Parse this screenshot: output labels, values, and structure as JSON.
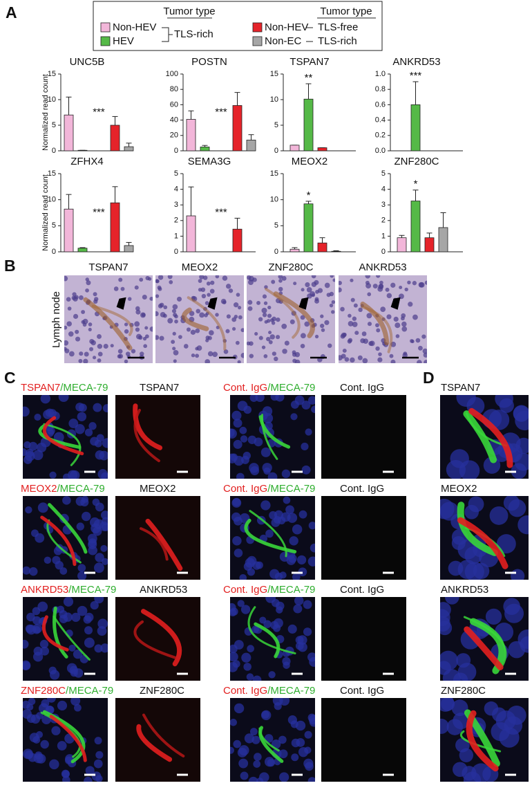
{
  "panel_labels": [
    "A",
    "B",
    "C",
    "D"
  ],
  "legend": {
    "left": {
      "header": "Tumor type",
      "group": "TLS-rich",
      "entries": [
        {
          "name": "Non-HEV",
          "color": "#f2b6d9"
        },
        {
          "name": "HEV",
          "color": "#55b947"
        }
      ]
    },
    "right": {
      "header": "Tumor type",
      "entries": [
        {
          "name": "Non-HEV",
          "color": "#e5232a",
          "group": "TLS-free"
        },
        {
          "name": "Non-EC",
          "color": "#a6a6a6",
          "group": "TLS-rich"
        }
      ]
    }
  },
  "chart_data": [
    {
      "type": "bar",
      "title": "UNC5B",
      "ylabel": "Normalized read count",
      "values": [
        7,
        0.1,
        5,
        0.8
      ],
      "errors": [
        3.5,
        0,
        1.7,
        0.7
      ],
      "annotation": "***",
      "ylim": [
        0,
        15
      ],
      "yticks": [
        0,
        5,
        10,
        15
      ]
    },
    {
      "type": "bar",
      "title": "POSTN",
      "values": [
        41,
        5,
        59,
        14
      ],
      "errors": [
        11,
        2,
        17,
        7
      ],
      "annotation": "***",
      "ylim": [
        0,
        100
      ],
      "yticks": [
        0,
        20,
        40,
        60,
        80,
        100
      ]
    },
    {
      "type": "bar",
      "title": "TSPAN7",
      "values": [
        1.1,
        10.1,
        0.6,
        0
      ],
      "errors": [
        0,
        3,
        0,
        0
      ],
      "annotation": "**",
      "ylim": [
        0,
        15
      ],
      "yticks": [
        0,
        5,
        10,
        15
      ]
    },
    {
      "type": "bar",
      "title": "ANKRD53",
      "values": [
        0,
        0.6,
        0,
        0
      ],
      "errors": [
        0,
        0.3,
        0,
        0
      ],
      "annotation": "***",
      "ylim": [
        0,
        1
      ],
      "yticks": [
        {
          "value": 0,
          "label": "0.0"
        },
        0.2,
        0.4,
        0.6,
        0.8,
        {
          "value": 1,
          "label": "1.0"
        }
      ]
    },
    {
      "type": "bar",
      "title": "ZFHX4",
      "ylabel": "Normalized read count",
      "values": [
        8.2,
        0.7,
        9.4,
        1.2
      ],
      "errors": [
        2.8,
        0.1,
        3.1,
        0.6
      ],
      "annotation": "***",
      "ylim": [
        0,
        15
      ],
      "yticks": [
        0,
        5,
        10,
        15
      ]
    },
    {
      "type": "bar",
      "title": "SEMA3G",
      "values": [
        2.3,
        0,
        1.45,
        0
      ],
      "errors": [
        1.85,
        0,
        0.7,
        0
      ],
      "annotation": "***",
      "ylim": [
        0,
        5
      ],
      "yticks": [
        0,
        1,
        2,
        3,
        4,
        5
      ]
    },
    {
      "type": "bar",
      "title": "MEOX2",
      "values": [
        0.5,
        9.2,
        1.7,
        0.1
      ],
      "errors": [
        0.3,
        0.5,
        1,
        0.1
      ],
      "annotation": "*",
      "ylim": [
        0,
        15
      ],
      "yticks": [
        0,
        5,
        10,
        15
      ]
    },
    {
      "type": "bar",
      "title": "ZNF280C",
      "values": [
        0.9,
        3.25,
        0.9,
        1.55
      ],
      "errors": [
        0.15,
        0.7,
        0.3,
        0.95
      ],
      "annotation": "*",
      "ylim": [
        0,
        5
      ],
      "yticks": [
        0,
        1,
        2,
        3,
        4,
        5
      ]
    }
  ],
  "panel_b": {
    "ylabel": "Lymph node",
    "images": [
      "TSPAN7",
      "MEOX2",
      "ZNF280C",
      "ANKRD53"
    ]
  },
  "panel_c": {
    "counterstain": "/MECA-79",
    "rows": [
      {
        "stain": "TSPAN7",
        "control": "Cont. IgG"
      },
      {
        "stain": "MEOX2",
        "control": "Cont. IgG"
      },
      {
        "stain": "ANKRD53",
        "control": "Cont. IgG"
      },
      {
        "stain": "ZNF280C",
        "control": "Cont. IgG"
      }
    ]
  },
  "panel_d": {
    "images": [
      "TSPAN7",
      "MEOX2",
      "ANKRD53",
      "ZNF280C"
    ]
  }
}
